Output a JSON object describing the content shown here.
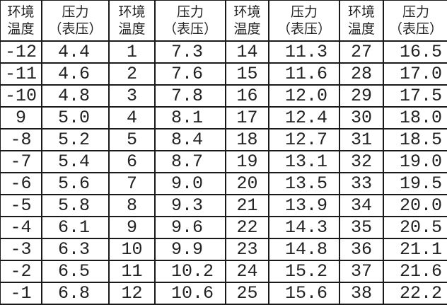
{
  "headers": {
    "temp": [
      "环境",
      "温度"
    ],
    "pressure": [
      "压力",
      "（表压）"
    ]
  },
  "groups": [
    {
      "temps": [
        "-12",
        "-11",
        "-10",
        "9",
        "-8",
        "-7",
        "-6",
        "-5",
        "-4",
        "-3",
        "-2",
        "-1"
      ],
      "pressures": [
        "4.4",
        "4.6",
        "4.8",
        "5.0",
        "5.2",
        "5.4",
        "5.6",
        "5.8",
        "6.1",
        "6.3",
        "6.5",
        "6.8"
      ]
    },
    {
      "temps": [
        "1",
        "2",
        "3",
        "4",
        "5",
        "6",
        "7",
        "8",
        "9",
        "10",
        "11",
        "12"
      ],
      "pressures": [
        "7.3",
        "7.6",
        "7.8",
        "8.1",
        "8.4",
        "8.7",
        "9.0",
        "9.3",
        "9.6",
        "9.9",
        "10.2",
        "10.6"
      ]
    },
    {
      "temps": [
        "14",
        "15",
        "16",
        "17",
        "18",
        "19",
        "20",
        "21",
        "22",
        "23",
        "24",
        "25"
      ],
      "pressures": [
        "11.3",
        "11.6",
        "12.0",
        "12.4",
        "12.7",
        "13.1",
        "13.5",
        "13.9",
        "14.3",
        "14.8",
        "15.2",
        "15.6"
      ]
    },
    {
      "temps": [
        "27",
        "28",
        "29",
        "30",
        "31",
        "32",
        "33",
        "34",
        "35",
        "36",
        "37",
        "38"
      ],
      "pressures": [
        "16.5",
        "17.0",
        "17.5",
        "18.0",
        "18.5",
        "19.0",
        "19.5",
        "20.0",
        "20.5",
        "21.1",
        "21.6",
        "22.2"
      ]
    }
  ]
}
